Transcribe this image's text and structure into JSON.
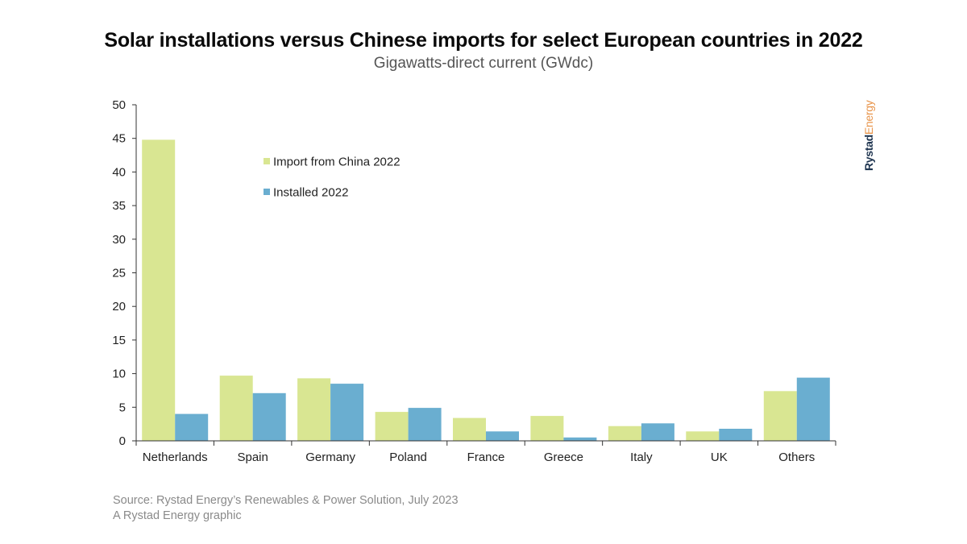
{
  "chart_data": {
    "type": "bar",
    "title": "Solar installations versus Chinese imports for select European countries in 2022",
    "subtitle": "Gigawatts-direct current (GWdc)",
    "categories": [
      "Netherlands",
      "Spain",
      "Germany",
      "Poland",
      "France",
      "Greece",
      "Italy",
      "UK",
      "Others"
    ],
    "series": [
      {
        "name": "Import from China 2022",
        "color": "#d9e692",
        "values": [
          44.8,
          9.7,
          9.3,
          4.3,
          3.4,
          3.7,
          2.2,
          1.4,
          7.4
        ]
      },
      {
        "name": "Installed 2022",
        "color": "#6aaed0",
        "values": [
          4.0,
          7.1,
          8.5,
          4.9,
          1.4,
          0.5,
          2.6,
          1.8,
          9.4
        ]
      }
    ],
    "yticks": [
      0,
      5,
      10,
      15,
      20,
      25,
      30,
      35,
      40,
      45,
      50
    ],
    "ylim": [
      0,
      50
    ],
    "xlabel": "",
    "ylabel": "",
    "legend_position": "top-left"
  },
  "brand": {
    "part1": "Rystad",
    "part2": "Energy"
  },
  "source": {
    "line1": "Source: Rystad Energy’s Renewables & Power Solution, July 2023",
    "line2": "A Rystad Energy graphic"
  },
  "colors": {
    "import": "#d9e692",
    "installed": "#6aaed0",
    "axis": "#333333"
  }
}
